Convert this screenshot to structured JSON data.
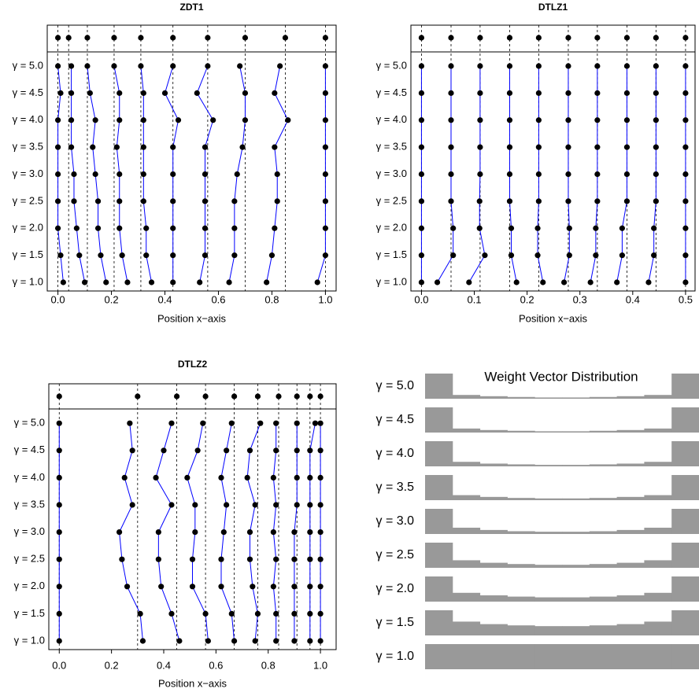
{
  "chart_data": [
    {
      "type": "dotplot",
      "title": "ZDT1",
      "xlabel": "Position x−axis",
      "xlim": [
        -0.04,
        1.04
      ],
      "xticks": [
        {
          "value": 0,
          "label": "0.0"
        },
        0.2,
        0.4,
        0.6,
        0.8,
        {
          "value": 1,
          "label": "1.0"
        }
      ],
      "line_color": "#0000ff",
      "point_color": "#000000",
      "reference": [
        0.0,
        0.04,
        0.11,
        0.21,
        0.31,
        0.43,
        0.56,
        0.7,
        0.85,
        1.0
      ],
      "series": [
        {
          "name": "γ = 1.0",
          "values": [
            0.02,
            0.1,
            0.18,
            0.26,
            0.35,
            0.43,
            0.53,
            0.64,
            0.78,
            0.97
          ]
        },
        {
          "name": "γ = 1.5",
          "values": [
            0.01,
            0.08,
            0.16,
            0.24,
            0.33,
            0.43,
            0.55,
            0.66,
            0.8,
            1.0
          ]
        },
        {
          "name": "γ = 2.0",
          "values": [
            0.0,
            0.07,
            0.15,
            0.23,
            0.33,
            0.43,
            0.55,
            0.66,
            0.81,
            1.0
          ]
        },
        {
          "name": "γ = 2.5",
          "values": [
            0.0,
            0.06,
            0.15,
            0.23,
            0.32,
            0.43,
            0.55,
            0.66,
            0.82,
            1.0
          ]
        },
        {
          "name": "γ = 3.0",
          "values": [
            0.0,
            0.06,
            0.14,
            0.23,
            0.32,
            0.43,
            0.55,
            0.67,
            0.82,
            1.0
          ]
        },
        {
          "name": "γ = 3.5",
          "values": [
            0.0,
            0.05,
            0.13,
            0.22,
            0.32,
            0.43,
            0.55,
            0.69,
            0.81,
            1.0
          ]
        },
        {
          "name": "γ = 4.0",
          "values": [
            0.0,
            0.05,
            0.14,
            0.23,
            0.32,
            0.45,
            0.58,
            0.7,
            0.86,
            1.0
          ]
        },
        {
          "name": "γ = 4.5",
          "values": [
            0.01,
            0.05,
            0.12,
            0.23,
            0.32,
            0.4,
            0.52,
            0.7,
            0.81,
            1.0
          ]
        },
        {
          "name": "γ = 5.0",
          "values": [
            0.0,
            0.05,
            0.11,
            0.21,
            0.31,
            0.43,
            0.56,
            0.68,
            0.83,
            1.0
          ]
        }
      ]
    },
    {
      "type": "dotplot",
      "title": "DTLZ1",
      "xlabel": "Position x−axis",
      "xlim": [
        -0.02,
        0.518
      ],
      "xticks": [
        {
          "value": 0,
          "label": "0.0"
        },
        0.1,
        0.2,
        0.3,
        0.4,
        0.5
      ],
      "line_color": "#0000ff",
      "point_color": "#000000",
      "reference": [
        0.0,
        0.056,
        0.111,
        0.167,
        0.222,
        0.278,
        0.333,
        0.389,
        0.444,
        0.5
      ],
      "series": [
        {
          "name": "γ = 1.0",
          "values": [
            0.0,
            0.03,
            0.09,
            0.18,
            0.23,
            0.27,
            0.32,
            0.37,
            0.43,
            0.5
          ]
        },
        {
          "name": "γ = 1.5",
          "values": [
            0.0,
            0.06,
            0.12,
            0.17,
            0.22,
            0.28,
            0.33,
            0.38,
            0.44,
            0.5
          ]
        },
        {
          "name": "γ = 2.0",
          "values": [
            0.0,
            0.06,
            0.11,
            0.17,
            0.22,
            0.28,
            0.33,
            0.38,
            0.44,
            0.5
          ]
        },
        {
          "name": "γ = 2.5",
          "values": [
            0.0,
            0.056,
            0.11,
            0.167,
            0.222,
            0.278,
            0.333,
            0.389,
            0.444,
            0.5
          ]
        },
        {
          "name": "γ = 3.0",
          "values": [
            0.0,
            0.056,
            0.111,
            0.167,
            0.222,
            0.278,
            0.333,
            0.389,
            0.444,
            0.5
          ]
        },
        {
          "name": "γ = 3.5",
          "values": [
            0.0,
            0.056,
            0.111,
            0.167,
            0.222,
            0.278,
            0.333,
            0.389,
            0.444,
            0.5
          ]
        },
        {
          "name": "γ = 4.0",
          "values": [
            0.0,
            0.056,
            0.111,
            0.167,
            0.222,
            0.278,
            0.333,
            0.389,
            0.444,
            0.5
          ]
        },
        {
          "name": "γ = 4.5",
          "values": [
            0.0,
            0.056,
            0.111,
            0.167,
            0.222,
            0.278,
            0.333,
            0.389,
            0.444,
            0.5
          ]
        },
        {
          "name": "γ = 5.0",
          "values": [
            0.0,
            0.056,
            0.111,
            0.167,
            0.222,
            0.278,
            0.333,
            0.389,
            0.444,
            0.5
          ]
        }
      ]
    },
    {
      "type": "dotplot",
      "title": "DTLZ2",
      "xlabel": "Position x−axis",
      "xlim": [
        -0.04,
        1.06
      ],
      "xticks": [
        {
          "value": 0,
          "label": "0.0"
        },
        0.2,
        0.4,
        0.6,
        0.8,
        {
          "value": 1,
          "label": "1.0"
        }
      ],
      "line_color": "#0000ff",
      "point_color": "#000000",
      "reference": [
        0.0,
        0.3,
        0.45,
        0.56,
        0.67,
        0.76,
        0.84,
        0.91,
        0.96,
        1.0
      ],
      "series": [
        {
          "name": "γ = 1.0",
          "values": [
            0.0,
            0.32,
            0.46,
            0.57,
            0.67,
            0.75,
            0.83,
            0.9,
            0.96,
            1.0
          ]
        },
        {
          "name": "γ = 1.5",
          "values": [
            0.0,
            0.31,
            0.43,
            0.56,
            0.66,
            0.76,
            0.83,
            0.9,
            0.96,
            1.0
          ]
        },
        {
          "name": "γ = 2.0",
          "values": [
            0.0,
            0.26,
            0.39,
            0.51,
            0.62,
            0.74,
            0.82,
            0.9,
            0.96,
            1.0
          ]
        },
        {
          "name": "γ = 2.5",
          "values": [
            0.0,
            0.24,
            0.38,
            0.51,
            0.62,
            0.73,
            0.83,
            0.9,
            0.96,
            1.0
          ]
        },
        {
          "name": "γ = 3.0",
          "values": [
            0.0,
            0.23,
            0.38,
            0.52,
            0.63,
            0.73,
            0.82,
            0.9,
            0.96,
            1.0
          ]
        },
        {
          "name": "γ = 3.5",
          "values": [
            0.0,
            0.28,
            0.43,
            0.52,
            0.64,
            0.75,
            0.83,
            0.91,
            0.96,
            1.0
          ]
        },
        {
          "name": "γ = 4.0",
          "values": [
            0.0,
            0.25,
            0.37,
            0.49,
            0.62,
            0.72,
            0.82,
            0.91,
            0.96,
            1.0
          ]
        },
        {
          "name": "γ = 4.5",
          "values": [
            0.0,
            0.28,
            0.4,
            0.53,
            0.64,
            0.73,
            0.83,
            0.91,
            0.96,
            1.0
          ]
        },
        {
          "name": "γ = 5.0",
          "values": [
            0.0,
            0.27,
            0.43,
            0.55,
            0.66,
            0.77,
            0.83,
            0.91,
            0.98,
            1.0
          ]
        }
      ]
    },
    {
      "type": "steps",
      "title": "Weight Vector Distribution",
      "color": "#999999",
      "series": [
        {
          "name": "γ = 1.0",
          "values": [
            1,
            1,
            1,
            1,
            1,
            1,
            1,
            1,
            1,
            1
          ]
        },
        {
          "name": "γ = 1.5",
          "values": [
            1,
            0.55,
            0.45,
            0.4,
            0.37,
            0.37,
            0.4,
            0.45,
            0.55,
            1
          ]
        },
        {
          "name": "γ = 2.0",
          "values": [
            1,
            0.35,
            0.25,
            0.2,
            0.17,
            0.17,
            0.2,
            0.25,
            0.35,
            1
          ]
        },
        {
          "name": "γ = 2.5",
          "values": [
            1,
            0.3,
            0.2,
            0.15,
            0.12,
            0.12,
            0.15,
            0.2,
            0.3,
            1
          ]
        },
        {
          "name": "γ = 3.0",
          "values": [
            1,
            0.25,
            0.16,
            0.11,
            0.09,
            0.09,
            0.11,
            0.16,
            0.25,
            1
          ]
        },
        {
          "name": "γ = 3.5",
          "values": [
            1,
            0.2,
            0.13,
            0.09,
            0.07,
            0.07,
            0.09,
            0.13,
            0.2,
            1
          ]
        },
        {
          "name": "γ = 4.0",
          "values": [
            1,
            0.18,
            0.11,
            0.08,
            0.06,
            0.06,
            0.08,
            0.11,
            0.18,
            1
          ]
        },
        {
          "name": "γ = 4.5",
          "values": [
            1,
            0.16,
            0.1,
            0.07,
            0.05,
            0.05,
            0.07,
            0.1,
            0.16,
            1
          ]
        },
        {
          "name": "γ = 5.0",
          "values": [
            1,
            0.15,
            0.1,
            0.07,
            0.05,
            0.05,
            0.07,
            0.1,
            0.15,
            1
          ]
        }
      ]
    }
  ]
}
